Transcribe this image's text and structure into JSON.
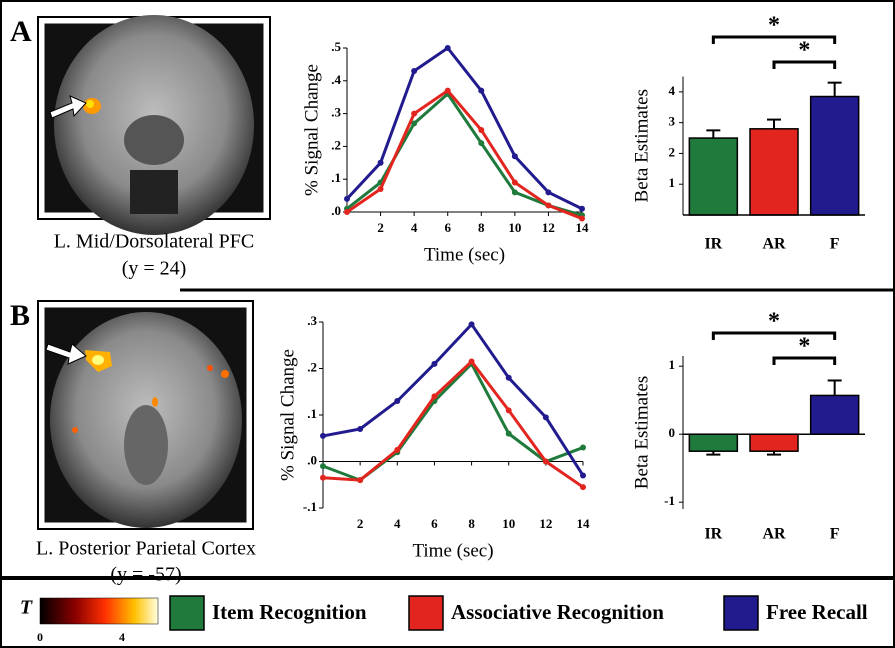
{
  "panels": [
    {
      "label": "A",
      "caption": "L. Mid/Dorsolateral PFC",
      "coordinate": "(y = 24)"
    },
    {
      "label": "B",
      "caption": "L. Posterior Parietal Cortex",
      "coordinate": "(y = -57)"
    }
  ],
  "colorbar": {
    "label": "T",
    "ticks": [
      0,
      4
    ]
  },
  "chart_data": [
    {
      "type": "line",
      "ylabel": "% Signal Change",
      "xlabel": "Time (sec)",
      "x": [
        0,
        2,
        4,
        6,
        8,
        10,
        12,
        14
      ],
      "xlim": [
        0,
        14
      ],
      "xticks": [
        2,
        4,
        6,
        8,
        10,
        12,
        14
      ],
      "ylim": [
        0,
        0.5
      ],
      "yticks": [
        {
          "value": 0,
          "label": ".0"
        },
        {
          "value": 0.1,
          "label": ".1"
        },
        {
          "value": 0.2,
          "label": ".2"
        },
        {
          "value": 0.3,
          "label": ".3"
        },
        {
          "value": 0.4,
          "label": ".4"
        },
        {
          "value": 0.5,
          "label": ".5"
        }
      ],
      "series": [
        {
          "name": "Item Recognition",
          "color": "#1f7a3c",
          "values": [
            0.01,
            0.09,
            0.27,
            0.36,
            0.21,
            0.06,
            0.02,
            -0.01
          ]
        },
        {
          "name": "Associative Recognition",
          "color": "#e2261f",
          "values": [
            0.0,
            0.07,
            0.3,
            0.37,
            0.25,
            0.09,
            0.02,
            -0.02
          ]
        },
        {
          "name": "Free Recall",
          "color": "#211b8e",
          "values": [
            0.04,
            0.15,
            0.43,
            0.5,
            0.37,
            0.17,
            0.06,
            0.01
          ]
        }
      ]
    },
    {
      "type": "bar",
      "ylabel": "Beta Estimates",
      "categories": [
        "IR",
        "AR",
        "F"
      ],
      "values": [
        2.5,
        2.8,
        3.85
      ],
      "errors": [
        0.25,
        0.3,
        0.45
      ],
      "colors": [
        "#1f7a3c",
        "#e2261f",
        "#211b8e"
      ],
      "ylim": [
        0,
        4.5
      ],
      "yticks": [
        1,
        2,
        3,
        4
      ],
      "significance": [
        {
          "from": 0,
          "to": 2,
          "label": "*"
        },
        {
          "from": 1,
          "to": 2,
          "label": "*"
        }
      ]
    },
    {
      "type": "line",
      "ylabel": "% Signal Change",
      "xlabel": "Time (sec)",
      "x": [
        0,
        2,
        4,
        6,
        8,
        10,
        12,
        14
      ],
      "xlim": [
        0,
        14
      ],
      "xticks": [
        2,
        4,
        6,
        8,
        10,
        12,
        14
      ],
      "ylim": [
        -0.1,
        0.3
      ],
      "yticks": [
        {
          "value": -0.1,
          "label": "-.1"
        },
        {
          "value": 0,
          "label": ".0"
        },
        {
          "value": 0.1,
          "label": ".1"
        },
        {
          "value": 0.2,
          "label": ".2"
        },
        {
          "value": 0.3,
          "label": ".3"
        }
      ],
      "series": [
        {
          "color": "#1f7a3c",
          "values": [
            -0.01,
            -0.04,
            0.02,
            0.13,
            0.21,
            0.06,
            0.0,
            0.03
          ]
        },
        {
          "color": "#e2261f",
          "values": [
            -0.035,
            -0.04,
            0.025,
            0.14,
            0.215,
            0.11,
            0.0,
            -0.055
          ]
        },
        {
          "color": "#211b8e",
          "values": [
            0.055,
            0.07,
            0.13,
            0.21,
            0.295,
            0.18,
            0.095,
            -0.03
          ]
        }
      ]
    },
    {
      "type": "bar",
      "ylabel": "Beta Estimates",
      "categories": [
        "IR",
        "AR",
        "F"
      ],
      "values": [
        -0.25,
        -0.25,
        0.57
      ],
      "errors": [
        0.05,
        0.05,
        0.22
      ],
      "colors": [
        "#1f7a3c",
        "#e2261f",
        "#211b8e"
      ],
      "ylim": [
        -1.1,
        1.15
      ],
      "yticks": [
        -1,
        0,
        1
      ],
      "significance": [
        {
          "from": 0,
          "to": 2,
          "label": "*"
        },
        {
          "from": 1,
          "to": 2,
          "label": "*"
        }
      ]
    }
  ]
}
